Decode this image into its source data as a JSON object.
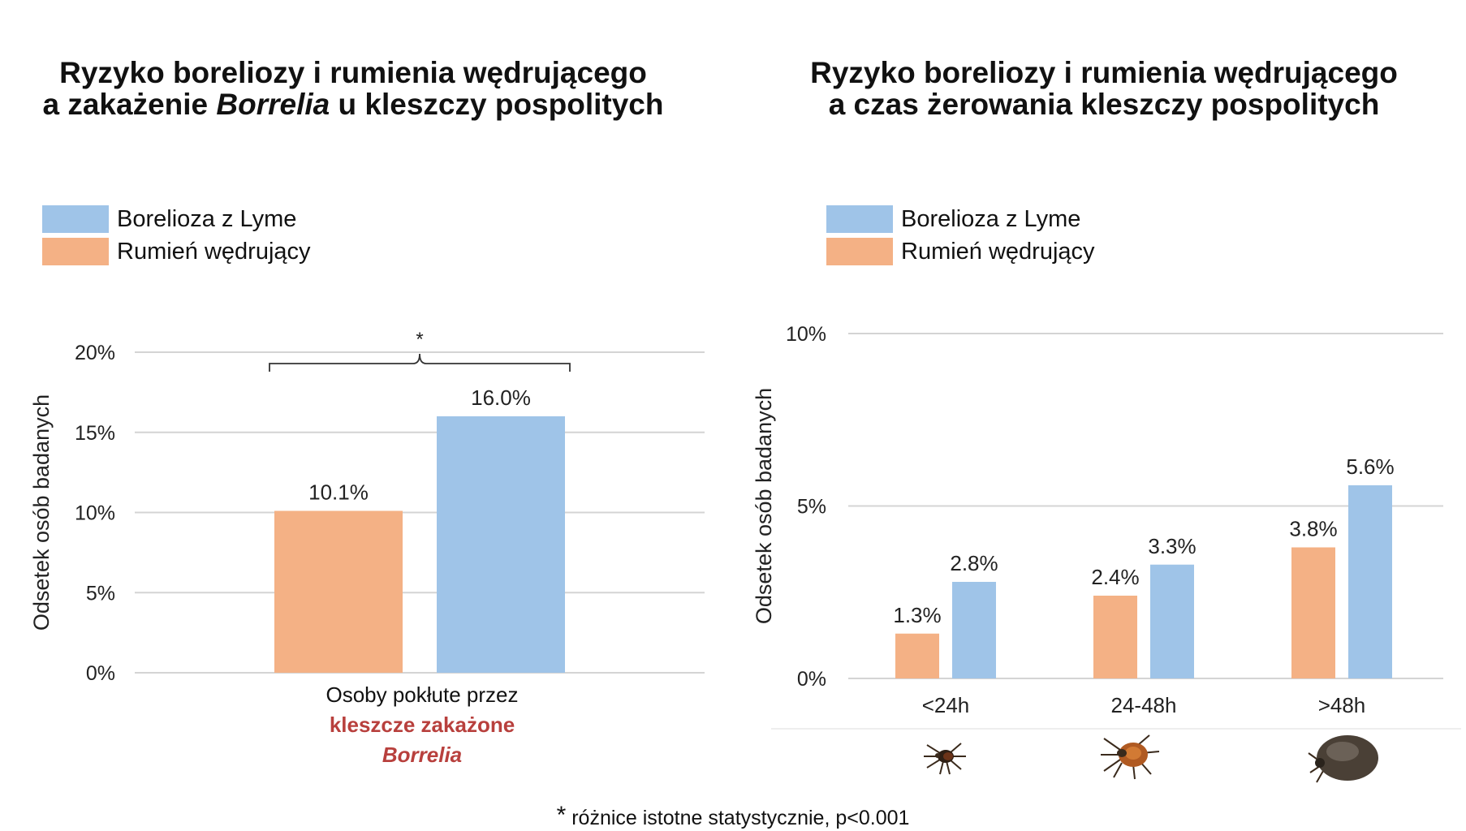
{
  "colors": {
    "lyme": "#9fc4e8",
    "erythema": "#f4b185",
    "grid": "#d4d4d4",
    "accent_red": "#b8403d"
  },
  "left": {
    "title_line1": "Ryzyko boreliozy i rumienia wędrującego",
    "title_line2_a": "a zakażenie ",
    "title_line2_italic": "Borrelia",
    "title_line2_b": " u kleszczy pospolitych",
    "legend": [
      "Borelioza z Lyme",
      "Rumień wędrujący"
    ],
    "xlabel_line1": "Osoby pokłute przez",
    "xlabel_line2": "kleszcze zakażone",
    "xlabel_line3": "Borrelia"
  },
  "right": {
    "title_line1": "Ryzyko boreliozy i rumienia wędrującego",
    "title_line2": "a czas żerowania kleszczy pospolitych",
    "legend": [
      "Borelioza z Lyme",
      "Rumień wędrujący"
    ]
  },
  "footnote": {
    "star": "*",
    "text": " różnice istotne statystycznie, p<0.001"
  },
  "chart_data": [
    {
      "type": "bar",
      "ylabel": "Odsetek osób badanych",
      "ylim": [
        0,
        20
      ],
      "yticks": [
        "0%",
        "5%",
        "10%",
        "15%",
        "20%"
      ],
      "yticks_values": [
        0,
        5,
        10,
        15,
        20
      ],
      "categories": [
        "Osoby pokłute przez kleszcze zakażone Borrelia"
      ],
      "series": [
        {
          "name": "Rumień wędrujący",
          "values": [
            10.1
          ],
          "labels": [
            "10.1%"
          ]
        },
        {
          "name": "Borelioza z Lyme",
          "values": [
            16.0
          ],
          "labels": [
            "16.0%"
          ]
        }
      ],
      "annotation": "*",
      "grid": true,
      "legend_position": "top-left"
    },
    {
      "type": "bar",
      "ylabel": "Odsetek osób badanych",
      "ylim": [
        0,
        10
      ],
      "yticks": [
        "0%",
        "5%",
        "10%"
      ],
      "yticks_values": [
        0,
        5,
        10
      ],
      "categories": [
        "<24h",
        "24-48h",
        ">48h"
      ],
      "series": [
        {
          "name": "Rumień wędrujący",
          "values": [
            1.3,
            2.4,
            3.8
          ],
          "labels": [
            "1.3%",
            "2.4%",
            "3.8%"
          ]
        },
        {
          "name": "Borelioza z Lyme",
          "values": [
            2.8,
            3.3,
            5.6
          ],
          "labels": [
            "2.8%",
            "3.3%",
            "5.6%"
          ]
        }
      ],
      "grid": true,
      "legend_position": "top-left",
      "category_icons": [
        "small-tick-icon",
        "medium-engorged-tick-icon",
        "fully-engorged-tick-icon"
      ]
    }
  ]
}
